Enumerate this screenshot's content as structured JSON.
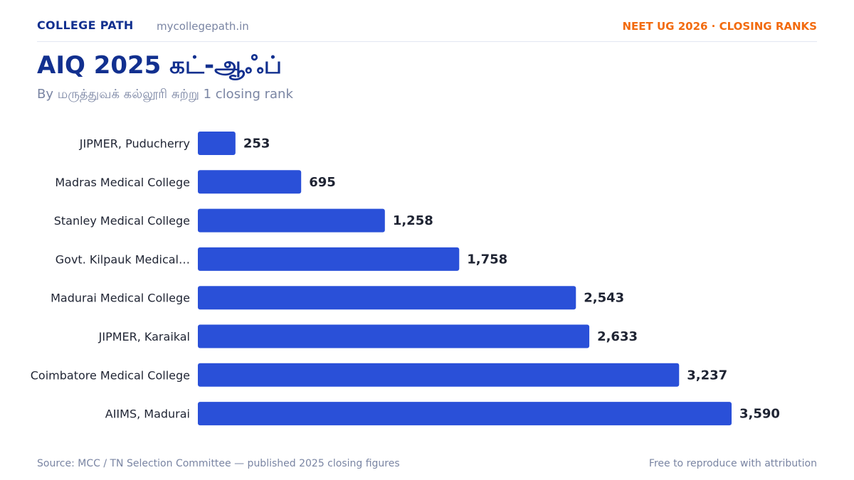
{
  "header": {
    "brand": "COLLEGE PATH",
    "domain": "mycollegepath.in",
    "tag": "NEET UG 2026 · CLOSING RANKS"
  },
  "chart_data": {
    "type": "bar",
    "orientation": "horizontal",
    "title": "AIQ 2025 கட்-ஆஃப்",
    "subtitle": "By மருத்துவக் கல்லூரி சுற்று 1 closing rank",
    "categories": [
      "JIPMER, Puducherry",
      "Madras Medical College",
      "Stanley Medical College",
      "Govt. Kilpauk Medical…",
      "Madurai Medical College",
      "JIPMER, Karaikal",
      "Coimbatore Medical College",
      "AIIMS, Madurai"
    ],
    "values": [
      253,
      695,
      1258,
      1758,
      2543,
      2633,
      3237,
      3590
    ],
    "value_labels": [
      "253",
      "695",
      "1,258",
      "1,758",
      "2,543",
      "2,633",
      "3,237",
      "3,590"
    ],
    "xlim": [
      0,
      3590
    ],
    "bar_color": "#2a50d8",
    "grid": false,
    "legend": "none"
  },
  "footer": {
    "source": "Source: MCC / TN Selection Committee — published 2025 closing figures",
    "license": "Free to reproduce with attribution"
  }
}
